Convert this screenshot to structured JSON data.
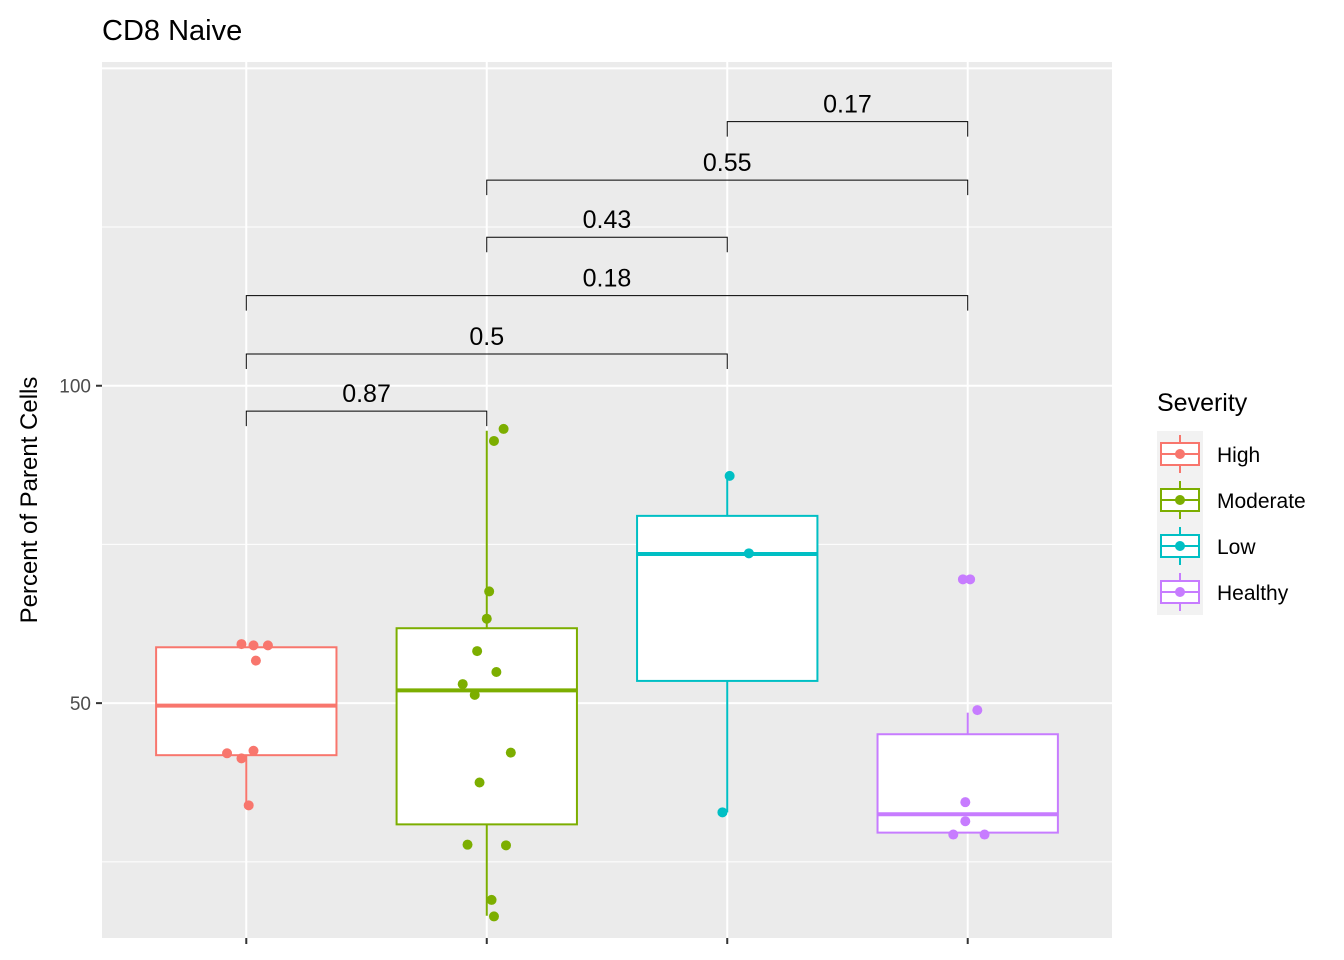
{
  "chart_data": {
    "type": "box",
    "title": "CD8 Naive",
    "xlabel": "",
    "ylabel": "Percent of Parent Cells",
    "ylim": [
      13,
      151
    ],
    "yticks": [
      50,
      100
    ],
    "grid": true,
    "legend": {
      "title": "Severity",
      "position": "right",
      "entries": [
        "High",
        "Moderate",
        "Low",
        "Healthy"
      ]
    },
    "series": [
      {
        "name": "High",
        "color": "#F8766D",
        "box": {
          "lower_whisker": 33.5,
          "q1": 41.8,
          "median": 49.6,
          "q3": 58.8,
          "upper_whisker": 58.8
        },
        "points": [
          {
            "dx": -0.02,
            "y": 59.3
          },
          {
            "dx": 0.03,
            "y": 59.1
          },
          {
            "dx": 0.09,
            "y": 59.1
          },
          {
            "dx": 0.04,
            "y": 56.7
          },
          {
            "dx": -0.08,
            "y": 42.1
          },
          {
            "dx": 0.03,
            "y": 42.5
          },
          {
            "dx": -0.02,
            "y": 41.3
          },
          {
            "dx": 0.01,
            "y": 33.9
          }
        ]
      },
      {
        "name": "Moderate",
        "color": "#7CAE00",
        "box": {
          "lower_whisker": 16.5,
          "q1": 30.9,
          "median": 52.0,
          "q3": 61.8,
          "upper_whisker": 92.9
        },
        "points": [
          {
            "dx": 0.07,
            "y": 93.2
          },
          {
            "dx": 0.03,
            "y": 91.3
          },
          {
            "dx": 0.01,
            "y": 67.6
          },
          {
            "dx": 0.0,
            "y": 63.3
          },
          {
            "dx": -0.04,
            "y": 58.2
          },
          {
            "dx": 0.04,
            "y": 54.9
          },
          {
            "dx": -0.1,
            "y": 53.0
          },
          {
            "dx": -0.05,
            "y": 51.3
          },
          {
            "dx": 0.1,
            "y": 42.2
          },
          {
            "dx": -0.03,
            "y": 37.5
          },
          {
            "dx": -0.08,
            "y": 27.7
          },
          {
            "dx": 0.08,
            "y": 27.6
          },
          {
            "dx": 0.02,
            "y": 19.0
          },
          {
            "dx": 0.03,
            "y": 16.4
          }
        ]
      },
      {
        "name": "Low",
        "color": "#00BFC4",
        "box": {
          "lower_whisker": 32.8,
          "q1": 53.5,
          "median": 73.5,
          "q3": 79.5,
          "upper_whisker": 85.8
        },
        "points": [
          {
            "dx": 0.01,
            "y": 85.8
          },
          {
            "dx": 0.09,
            "y": 73.6
          },
          {
            "dx": -0.02,
            "y": 32.8
          }
        ]
      },
      {
        "name": "Healthy",
        "color": "#C77CFF",
        "box": {
          "lower_whisker": 29.6,
          "q1": 29.6,
          "median": 32.5,
          "q3": 45.1,
          "upper_whisker": 48.5
        },
        "points": [
          {
            "dx": -0.02,
            "y": 69.5
          },
          {
            "dx": 0.01,
            "y": 69.5
          },
          {
            "dx": 0.04,
            "y": 48.9
          },
          {
            "dx": -0.01,
            "y": 34.4
          },
          {
            "dx": -0.01,
            "y": 31.4
          },
          {
            "dx": -0.06,
            "y": 29.3
          },
          {
            "dx": 0.07,
            "y": 29.3
          }
        ]
      }
    ],
    "comparisons": [
      {
        "from": 0,
        "to": 1,
        "y": 96,
        "label": "0.87"
      },
      {
        "from": 0,
        "to": 2,
        "y": 105,
        "label": "0.5"
      },
      {
        "from": 0,
        "to": 3,
        "y": 114.2,
        "label": "0.18"
      },
      {
        "from": 1,
        "to": 2,
        "y": 123.4,
        "label": "0.43"
      },
      {
        "from": 1,
        "to": 3,
        "y": 132.4,
        "label": "0.55"
      },
      {
        "from": 2,
        "to": 3,
        "y": 141.6,
        "label": "0.17"
      }
    ]
  }
}
